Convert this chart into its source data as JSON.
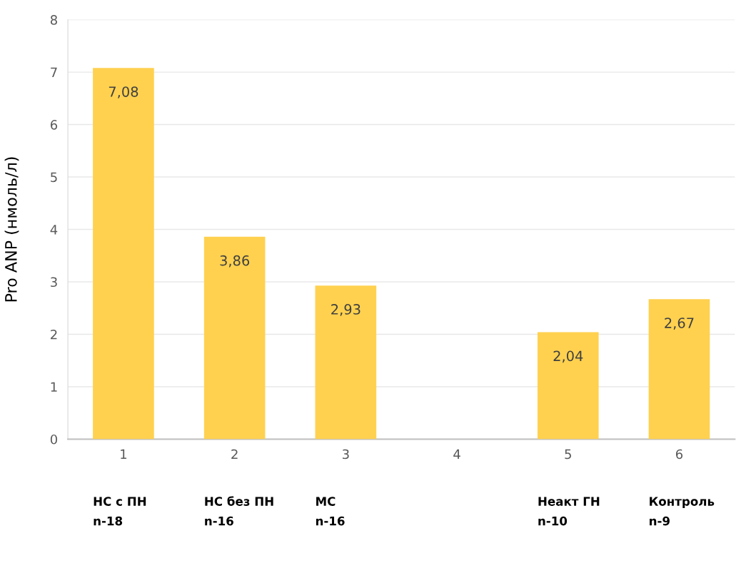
{
  "chart_data": {
    "type": "bar",
    "ylabel": "Pro ANP (нмоль/л)",
    "categories": [
      "1",
      "2",
      "3",
      "4",
      "5",
      "6"
    ],
    "values": [
      7.08,
      3.86,
      2.93,
      null,
      2.04,
      2.67
    ],
    "value_labels": [
      "7,08",
      "3,86",
      "2,93",
      null,
      "2,04",
      "2,67"
    ],
    "color": "#ffd14f",
    "ylim": [
      0,
      8
    ],
    "yticks": [
      0,
      1,
      2,
      3,
      4,
      5,
      6,
      7,
      8
    ],
    "grid": "y",
    "annotations": [
      "НС с ПН\nn-18",
      "НС без ПН\nn-16",
      "МС\nn-16",
      "Неакт ГН\nn-10",
      "Контроль\nn-9"
    ]
  }
}
